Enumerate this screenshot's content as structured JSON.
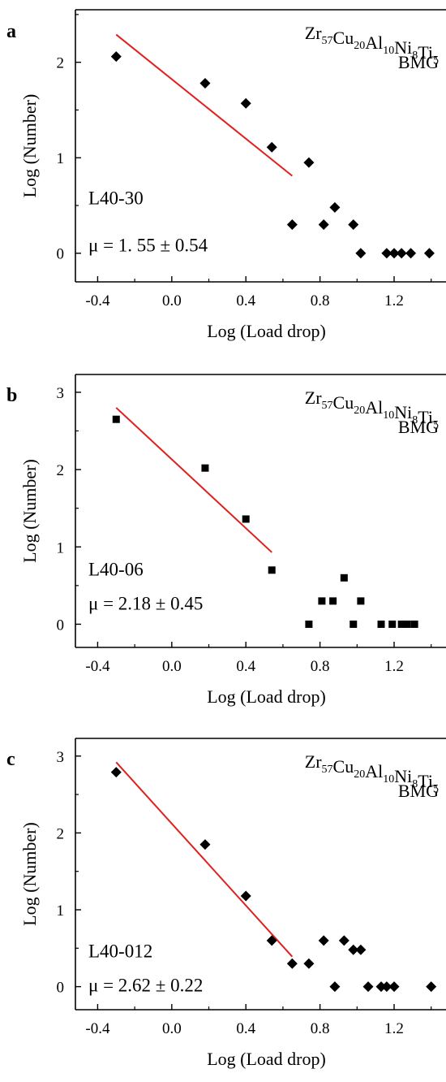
{
  "chart_data": [
    {
      "type": "scatter",
      "panel": "a",
      "material": {
        "parts": [
          [
            "Zr",
            "57"
          ],
          [
            "Cu",
            "20"
          ],
          [
            "Al",
            "10"
          ],
          [
            "Ni",
            "8"
          ],
          [
            "Ti",
            "5"
          ]
        ],
        "line2": "BMG"
      },
      "sample_label": "L40-30",
      "mu_label": "μ = 1. 55 ± 0.54",
      "xlabel": "Log (Load drop)",
      "ylabel": "Log (Number)",
      "xlim": [
        -0.52,
        1.48
      ],
      "ylim": [
        -0.3,
        2.55
      ],
      "xticks": [
        -0.4,
        0.0,
        0.4,
        0.8,
        1.2
      ],
      "xtick_labels": [
        "-0.4",
        "0.0",
        "0.4",
        "0.8",
        "1.2"
      ],
      "yticks": [
        0,
        1,
        2
      ],
      "ytick_labels": [
        "0",
        "1",
        "2"
      ],
      "marker": "diamond",
      "points": [
        [
          -0.3,
          2.06
        ],
        [
          0.18,
          1.78
        ],
        [
          0.4,
          1.57
        ],
        [
          0.54,
          1.11
        ],
        [
          0.74,
          0.95
        ],
        [
          0.65,
          0.3
        ],
        [
          0.82,
          0.3
        ],
        [
          0.88,
          0.48
        ],
        [
          0.98,
          0.3
        ],
        [
          1.02,
          0.0
        ],
        [
          1.16,
          0.0
        ],
        [
          1.2,
          0.0
        ],
        [
          1.24,
          0.0
        ],
        [
          1.29,
          0.0
        ],
        [
          1.39,
          0.0
        ]
      ],
      "fit_line": {
        "x": [
          -0.3,
          0.65
        ],
        "y": [
          2.29,
          0.81
        ],
        "color": "#e0201c"
      }
    },
    {
      "type": "scatter",
      "panel": "b",
      "material": {
        "parts": [
          [
            "Zr",
            "57"
          ],
          [
            "Cu",
            "20"
          ],
          [
            "Al",
            "10"
          ],
          [
            "Ni",
            "8"
          ],
          [
            "Ti",
            "5"
          ]
        ],
        "line2": "BMG"
      },
      "sample_label": "L40-06",
      "mu_label": "μ = 2.18 ± 0.45",
      "xlabel": "Log (Load drop)",
      "ylabel": "Log (Number)",
      "xlim": [
        -0.52,
        1.48
      ],
      "ylim": [
        -0.3,
        3.23
      ],
      "xticks": [
        -0.4,
        0.0,
        0.4,
        0.8,
        1.2
      ],
      "xtick_labels": [
        "-0.4",
        "0.0",
        "0.4",
        "0.8",
        "1.2"
      ],
      "yticks": [
        0,
        1,
        2,
        3
      ],
      "ytick_labels": [
        "0",
        "1",
        "2",
        "3"
      ],
      "marker": "square",
      "points": [
        [
          -0.3,
          2.65
        ],
        [
          0.18,
          2.02
        ],
        [
          0.4,
          1.36
        ],
        [
          0.54,
          0.7
        ],
        [
          0.74,
          0.0
        ],
        [
          0.81,
          0.3
        ],
        [
          0.87,
          0.3
        ],
        [
          0.93,
          0.6
        ],
        [
          0.98,
          0.0
        ],
        [
          1.02,
          0.3
        ],
        [
          1.13,
          0.0
        ],
        [
          1.19,
          0.0
        ],
        [
          1.24,
          0.0
        ],
        [
          1.27,
          0.0
        ],
        [
          1.31,
          0.0
        ]
      ],
      "fit_line": {
        "x": [
          -0.3,
          0.54
        ],
        "y": [
          2.8,
          0.93
        ],
        "color": "#e0201c"
      }
    },
    {
      "type": "scatter",
      "panel": "c",
      "material": {
        "parts": [
          [
            "Zr",
            "57"
          ],
          [
            "Cu",
            "20"
          ],
          [
            "Al",
            "10"
          ],
          [
            "Ni",
            "8"
          ],
          [
            "Ti",
            "5"
          ]
        ],
        "line2": "BMG"
      },
      "sample_label": "L40-012",
      "mu_label": "μ = 2.62 ± 0.22",
      "xlabel": "Log (Load drop)",
      "ylabel": "Log (Number)",
      "xlim": [
        -0.52,
        1.48
      ],
      "ylim": [
        -0.3,
        3.23
      ],
      "xticks": [
        -0.4,
        0.0,
        0.4,
        0.8,
        1.2
      ],
      "xtick_labels": [
        "-0.4",
        "0.0",
        "0.4",
        "0.8",
        "1.2"
      ],
      "yticks": [
        0,
        1,
        2,
        3
      ],
      "ytick_labels": [
        "0",
        "1",
        "2",
        "3"
      ],
      "marker": "diamond",
      "points": [
        [
          -0.3,
          2.79
        ],
        [
          0.18,
          1.85
        ],
        [
          0.4,
          1.18
        ],
        [
          0.54,
          0.6
        ],
        [
          0.65,
          0.3
        ],
        [
          0.74,
          0.3
        ],
        [
          0.82,
          0.6
        ],
        [
          0.88,
          0.0
        ],
        [
          0.93,
          0.6
        ],
        [
          0.98,
          0.48
        ],
        [
          1.02,
          0.48
        ],
        [
          1.06,
          0.0
        ],
        [
          1.13,
          0.0
        ],
        [
          1.16,
          0.0
        ],
        [
          1.2,
          0.0
        ],
        [
          1.4,
          0.0
        ]
      ],
      "fit_line": {
        "x": [
          -0.3,
          0.65
        ],
        "y": [
          2.92,
          0.39
        ],
        "color": "#e0201c"
      }
    }
  ]
}
